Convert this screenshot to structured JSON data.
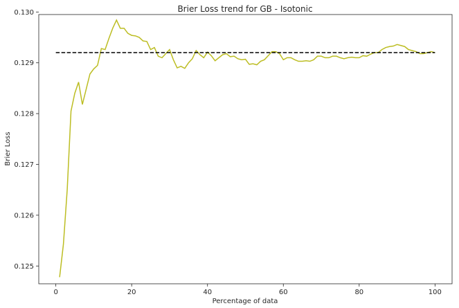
{
  "chart_data": {
    "type": "line",
    "title": "Brier Loss trend for GB - Isotonic",
    "xlabel": "Percentage of data",
    "ylabel": "Brier Loss",
    "xlim": [
      -4.5,
      104.5
    ],
    "ylim": [
      0.12465,
      0.12995
    ],
    "xticks": [
      0,
      20,
      40,
      60,
      80,
      100
    ],
    "xtick_labels": [
      "0",
      "20",
      "40",
      "60",
      "80",
      "100"
    ],
    "yticks": [
      0.125,
      0.126,
      0.127,
      0.128,
      0.129,
      0.13
    ],
    "ytick_labels": [
      "0.125",
      "0.126",
      "0.127",
      "0.128",
      "0.129",
      "0.130"
    ],
    "grid": false,
    "series": [
      {
        "style": "solid",
        "color": "#bcbd22",
        "x": [
          1,
          2,
          3,
          4,
          5,
          6,
          7,
          8,
          9,
          10,
          11,
          12,
          13,
          14,
          15,
          16,
          17,
          18,
          19,
          20,
          21,
          22,
          23,
          24,
          25,
          26,
          27,
          28,
          29,
          30,
          31,
          32,
          33,
          34,
          35,
          36,
          37,
          38,
          39,
          40,
          41,
          42,
          43,
          44,
          45,
          46,
          47,
          48,
          49,
          50,
          51,
          52,
          53,
          54,
          55,
          56,
          57,
          58,
          59,
          60,
          61,
          62,
          63,
          64,
          65,
          66,
          67,
          68,
          69,
          70,
          71,
          72,
          73,
          74,
          75,
          76,
          77,
          78,
          79,
          80,
          81,
          82,
          83,
          84,
          85,
          86,
          87,
          88,
          89,
          90,
          91,
          92,
          93,
          94,
          95,
          96,
          97,
          98,
          99,
          100
        ],
        "y": [
          0.12478,
          0.12543,
          0.1265,
          0.12805,
          0.1284,
          0.12862,
          0.12818,
          0.12848,
          0.12878,
          0.12888,
          0.12895,
          0.12928,
          0.12926,
          0.12948,
          0.12968,
          0.12984,
          0.12968,
          0.12968,
          0.12958,
          0.12954,
          0.12953,
          0.1295,
          0.12943,
          0.12942,
          0.12926,
          0.1293,
          0.12913,
          0.1291,
          0.12918,
          0.12926,
          0.12906,
          0.1289,
          0.12893,
          0.12889,
          0.129,
          0.12908,
          0.12924,
          0.12916,
          0.1291,
          0.12921,
          0.12914,
          0.12904,
          0.1291,
          0.12916,
          0.12918,
          0.12912,
          0.12913,
          0.12908,
          0.12906,
          0.12907,
          0.12897,
          0.12898,
          0.12896,
          0.12903,
          0.12906,
          0.12914,
          0.12922,
          0.12922,
          0.12918,
          0.12906,
          0.1291,
          0.1291,
          0.12906,
          0.12903,
          0.12903,
          0.12904,
          0.12903,
          0.12906,
          0.12913,
          0.12913,
          0.1291,
          0.1291,
          0.12913,
          0.12913,
          0.1291,
          0.12908,
          0.1291,
          0.12911,
          0.1291,
          0.1291,
          0.12914,
          0.12913,
          0.12917,
          0.1292,
          0.1292,
          0.12926,
          0.1293,
          0.12932,
          0.12933,
          0.12936,
          0.12934,
          0.12932,
          0.12926,
          0.12924,
          0.12922,
          0.12918,
          0.12918,
          0.1292,
          0.12922,
          0.1292
        ]
      },
      {
        "style": "dashed",
        "color": "#000000",
        "x": [
          0,
          100
        ],
        "y": [
          0.1292,
          0.1292
        ]
      }
    ]
  }
}
